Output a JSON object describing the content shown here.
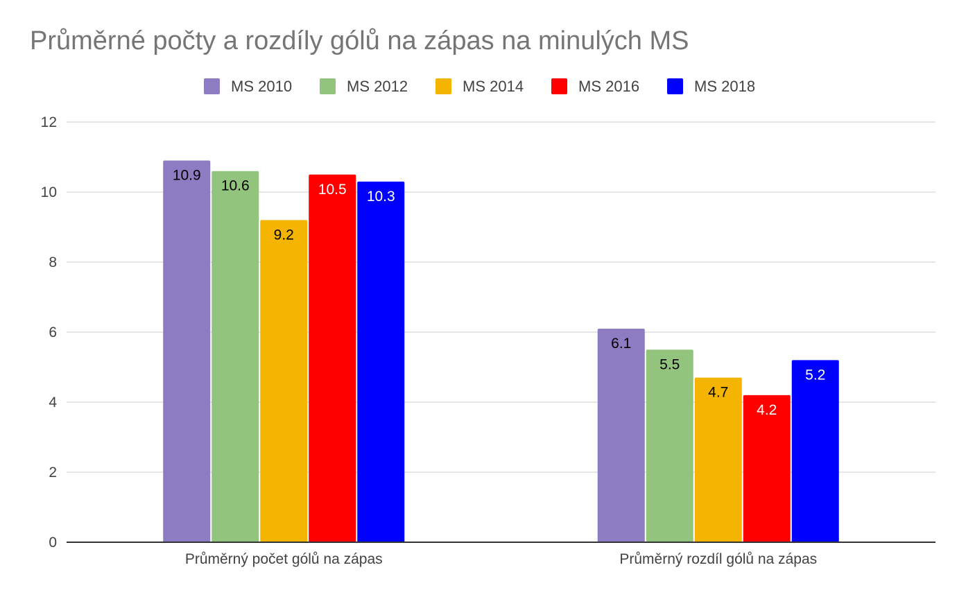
{
  "chart_data": {
    "type": "bar",
    "title": "Průměrné počty a rozdíly gólů na zápas na minulých MS",
    "xlabel": "",
    "ylabel": "",
    "categories": [
      "Průměrný počet gólů na zápas",
      "Průměrný rozdíl gólů na zápas"
    ],
    "series": [
      {
        "name": "MS 2010",
        "values": [
          10.9,
          6.1
        ],
        "color": "#8e7cc3",
        "label_color": "#000000"
      },
      {
        "name": "MS 2012",
        "values": [
          10.6,
          5.5
        ],
        "color": "#93c47d",
        "label_color": "#000000"
      },
      {
        "name": "MS 2014",
        "values": [
          9.2,
          4.7
        ],
        "color": "#f4b400",
        "label_color": "#000000"
      },
      {
        "name": "MS 2016",
        "values": [
          10.5,
          4.2
        ],
        "color": "#ff0000",
        "label_color": "#ffffff"
      },
      {
        "name": "MS 2018",
        "values": [
          10.3,
          5.2
        ],
        "color": "#0000ff",
        "label_color": "#ffffff"
      }
    ],
    "ylim": [
      0,
      12
    ],
    "yticks": [
      0,
      2,
      4,
      6,
      8,
      10,
      12
    ],
    "grid": true,
    "legend_position": "top"
  }
}
